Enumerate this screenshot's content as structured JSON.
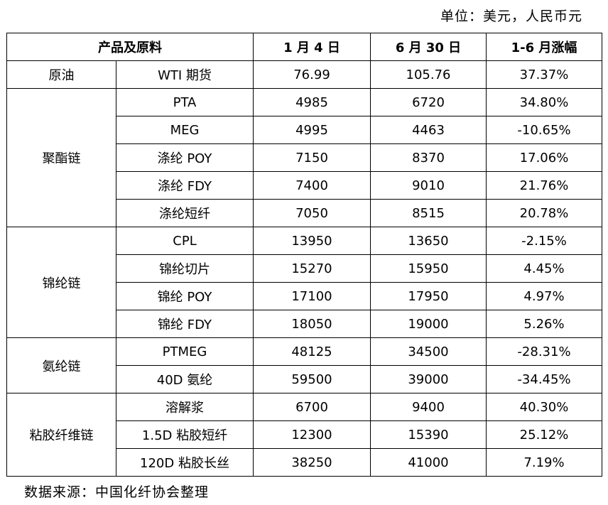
{
  "unit_note": "单位：美元，人民币元",
  "headers": [
    "产品及原料",
    "1 月 4 日",
    "6 月 30 日",
    "1-6 月涨幅"
  ],
  "groups": [
    {
      "name": "原油",
      "rows": [
        {
          "product": "WTI 期货",
          "jan4": "76.99",
          "jun30": "105.76",
          "change": "37.37%"
        }
      ]
    },
    {
      "name": "聚酯链",
      "rows": [
        {
          "product": "PTA",
          "jan4": "4985",
          "jun30": "6720",
          "change": "34.80%"
        },
        {
          "product": "MEG",
          "jan4": "4995",
          "jun30": "4463",
          "change": "-10.65%"
        },
        {
          "product": "涤纶 POY",
          "jan4": "7150",
          "jun30": "8370",
          "change": "17.06%"
        },
        {
          "product": "涤纶 FDY",
          "jan4": "7400",
          "jun30": "9010",
          "change": "21.76%"
        },
        {
          "product": "涤纶短纤",
          "jan4": "7050",
          "jun30": "8515",
          "change": "20.78%"
        }
      ]
    },
    {
      "name": "锦纶链",
      "rows": [
        {
          "product": "CPL",
          "jan4": "13950",
          "jun30": "13650",
          "change": "-2.15%"
        },
        {
          "product": "锦纶切片",
          "jan4": "15270",
          "jun30": "15950",
          "change": "4.45%"
        },
        {
          "product": "锦纶 POY",
          "jan4": "17100",
          "jun30": "17950",
          "change": "4.97%"
        },
        {
          "product": "锦纶 FDY",
          "jan4": "18050",
          "jun30": "19000",
          "change": "5.26%"
        }
      ]
    },
    {
      "name": "氨纶链",
      "rows": [
        {
          "product": "PTMEG",
          "jan4": "48125",
          "jun30": "34500",
          "change": "-28.31%"
        },
        {
          "product": "40D 氨纶",
          "jan4": "59500",
          "jun30": "39000",
          "change": "-34.45%"
        }
      ]
    },
    {
      "name": "粘胶纤维链",
      "rows": [
        {
          "product": "溶解浆",
          "jan4": "6700",
          "jun30": "9400",
          "change": "40.30%"
        },
        {
          "product": "1.5D 粘胶短纤",
          "jan4": "12300",
          "jun30": "15390",
          "change": "25.12%"
        },
        {
          "product": "120D 粘胶长丝",
          "jan4": "38250",
          "jun30": "41000",
          "change": "7.19%"
        }
      ]
    }
  ],
  "source_note": "数据来源：中国化纤协会整理"
}
